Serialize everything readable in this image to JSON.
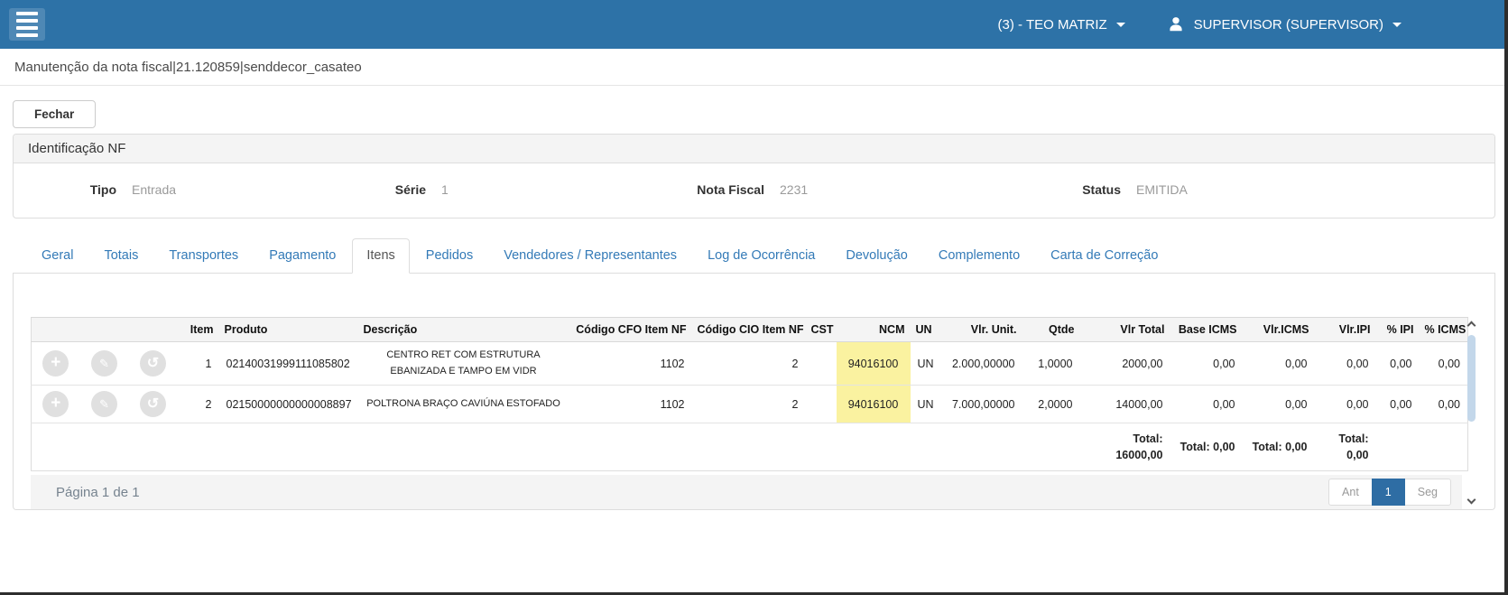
{
  "topbar": {
    "company_label": "(3) - TEO MATRIZ",
    "user_label": "SUPERVISOR (SUPERVISOR)"
  },
  "page": {
    "title": "Manutenção da nota fiscal|21.120859|senddecor_casateo",
    "close_button_label": "Fechar"
  },
  "identification": {
    "panel_title": "Identificação NF",
    "fields": [
      {
        "label": "Tipo",
        "value": "Entrada"
      },
      {
        "label": "Série",
        "value": "1"
      },
      {
        "label": "Nota Fiscal",
        "value": "2231"
      },
      {
        "label": "Status",
        "value": "EMITIDA"
      }
    ]
  },
  "tabs": {
    "active": "Itens",
    "items": [
      "Geral",
      "Totais",
      "Transportes",
      "Pagamento",
      "Itens",
      "Pedidos",
      "Vendedores / Representantes",
      "Log de Ocorrência",
      "Devolução",
      "Complemento",
      "Carta de Correção"
    ]
  },
  "items_table": {
    "headers": [
      "Item",
      "Produto",
      "Descrição",
      "Código CFO Item NF",
      "Código CIO Item NF",
      "CST",
      "NCM",
      "UN",
      "Vlr. Unit.",
      "Qtde",
      "Vlr Total",
      "Base ICMS",
      "Vlr.ICMS",
      "Vlr.IPI",
      "% IPI",
      "% ICMS"
    ],
    "row_actions": [
      {
        "id": "add",
        "icon": "plus-icon",
        "glyph": "+"
      },
      {
        "id": "edit",
        "icon": "pencil-icon",
        "glyph": "✎"
      },
      {
        "id": "history",
        "icon": "history-icon",
        "glyph": "↺"
      }
    ],
    "rows": [
      {
        "item": "1",
        "produto": "02140031999111085802",
        "descricao": "CENTRO RET COM ESTRUTURA EBANIZADA E TAMPO EM VIDR",
        "cfo": "1102",
        "cio": "2",
        "cst": "",
        "ncm": "94016100",
        "un": "UN",
        "vlr_unit": "2.000,00000",
        "qtde": "1,0000",
        "vlr_total": "2000,00",
        "base_icms": "0,00",
        "vlr_icms": "0,00",
        "vlr_ipi": "0,00",
        "pct_ipi": "0,00",
        "pct_icms": "0,00"
      },
      {
        "item": "2",
        "produto": "02150000000000008897",
        "descricao": "POLTRONA BRAÇO CAVIÚNA ESTOFADO",
        "cfo": "1102",
        "cio": "2",
        "cst": "",
        "ncm": "94016100",
        "un": "UN",
        "vlr_unit": "7.000,00000",
        "qtde": "2,0000",
        "vlr_total": "14000,00",
        "base_icms": "0,00",
        "vlr_icms": "0,00",
        "vlr_ipi": "0,00",
        "pct_ipi": "0,00",
        "pct_icms": "0,00"
      }
    ],
    "totals": {
      "vlr_total": "Total: 16000,00",
      "base_icms": "Total: 0,00",
      "vlr_icms": "Total: 0,00",
      "vlr_ipi": "Total: 0,00"
    },
    "pagination": {
      "info": "Página 1 de 1",
      "prev_label": "Ant",
      "page_label": "1",
      "next_label": "Seg"
    }
  },
  "colors": {
    "topbar_blue": "#2d72a7",
    "tab_link_blue": "#337ab7",
    "ncm_highlight": "#faf2a0",
    "active_page_blue": "#2e6da4"
  }
}
